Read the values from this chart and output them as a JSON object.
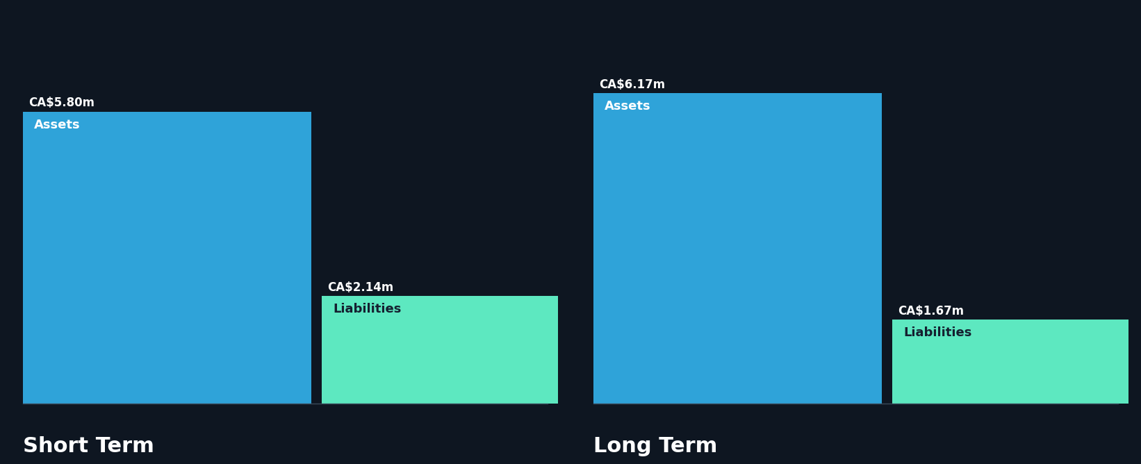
{
  "background_color": "#0e1621",
  "asset_color": "#2fa3d9",
  "liability_color": "#5de8c0",
  "text_color_white": "#ffffff",
  "text_color_dark": "#152030",
  "short_term": {
    "assets_value": 5.8,
    "assets_label": "CA$5.80m",
    "assets_text": "Assets",
    "liabilities_value": 2.14,
    "liabilities_label": "CA$2.14m",
    "liabilities_text": "Liabilities",
    "title": "Short Term"
  },
  "long_term": {
    "assets_value": 6.17,
    "assets_label": "CA$6.17m",
    "assets_text": "Assets",
    "liabilities_value": 1.67,
    "liabilities_label": "CA$1.67m",
    "liabilities_text": "Liabilities",
    "title": "Long Term"
  },
  "max_value": 6.17,
  "label_fontsize": 12,
  "inner_label_fontsize": 13,
  "title_fontsize": 22
}
